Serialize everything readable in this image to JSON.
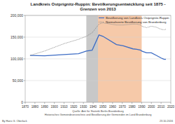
{
  "chart_data": {
    "type": "line",
    "title": "Landkreis Ostprignitz-Ruppin: Bevölkerungsentwicklung seit 1875 - Grenzen von 2013",
    "x": [
      1875,
      1890,
      1910,
      1925,
      1933,
      1939,
      1946,
      1950,
      1964,
      1971,
      1981,
      1985,
      1989,
      1990,
      1995,
      2000,
      2005,
      2010,
      2013,
      2015
    ],
    "series": [
      {
        "name": "Bevölkerung von Landkreis Ostprignitz-Ruppin",
        "color": "#3d6cc4",
        "line_style": "solid",
        "values": [
          108000,
          107000,
          110000,
          112000,
          118000,
          120000,
          155000,
          152000,
          133000,
          130000,
          123000,
          122000,
          120000,
          118000,
          114000,
          114000,
          108000,
          102000,
          99000,
          99000
        ]
      },
      {
        "name": "Normalisierte Bevölkerung von Brandenburg",
        "color": "#8a8a8a",
        "line_style": "dotted",
        "values": [
          108000,
          118000,
          135000,
          145000,
          152000,
          160000,
          180000,
          183000,
          178000,
          178000,
          180000,
          180000,
          178000,
          175000,
          172000,
          175000,
          173000,
          168000,
          167000,
          168000
        ]
      }
    ],
    "bands": [
      {
        "from": 1933,
        "to": 1945,
        "color": "#c8c8c8"
      },
      {
        "from": 1945,
        "to": 1990,
        "color": "#f6c9a9"
      }
    ],
    "xlim": [
      1870,
      2020
    ],
    "xticks": [
      1870,
      1880,
      1890,
      1900,
      1910,
      1920,
      1930,
      1940,
      1950,
      1960,
      1970,
      1980,
      1990,
      2000,
      2010,
      2020
    ],
    "ylim": [
      0,
      200000
    ],
    "yticks": [
      0,
      {
        "value": 50000,
        "label": "50,000"
      },
      {
        "value": 100000,
        "label": "100,000"
      },
      {
        "value": 150000,
        "label": "150,000"
      },
      {
        "value": 200000,
        "label": "200,000"
      }
    ],
    "grid": true,
    "legend": "top-right",
    "source": [
      "Quelle: Amt für Statistik Berlin-Brandenburg",
      "Historisches Gemeindeverzeichnis und Bevölkerung der Gemeinden im Land Brandenburg"
    ],
    "author": "By Hans G. Oberlack",
    "date": "23.10.2016"
  }
}
